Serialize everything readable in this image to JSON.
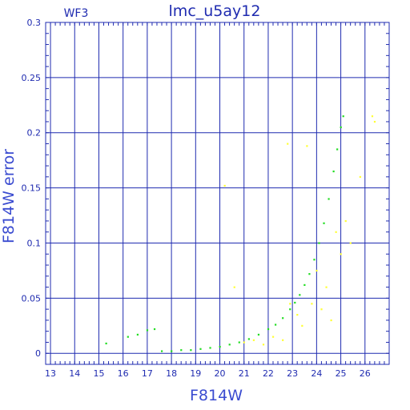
{
  "chart_data": {
    "type": "scatter",
    "title": "lmc_u5ay12",
    "corner_label": "WF3",
    "xlabel": "F814W",
    "ylabel": "F814W error",
    "xlim": [
      12.8,
      27.0
    ],
    "ylim": [
      -0.01,
      0.3
    ],
    "xticks": [
      13,
      14,
      15,
      16,
      17,
      18,
      19,
      20,
      21,
      22,
      23,
      24,
      25,
      26
    ],
    "xtick_labels": [
      "13",
      "14",
      "15",
      "16",
      "17",
      "18",
      "19",
      "20",
      "21",
      "22",
      "23",
      "24",
      "25",
      "26"
    ],
    "yticks": [
      0,
      0.05,
      0.1,
      0.15,
      0.2,
      0.25,
      0.3
    ],
    "ytick_labels": [
      "0",
      "0.05",
      "0.1",
      "0.15",
      "0.2",
      "0.25",
      "0.3"
    ],
    "grid": true,
    "colors": {
      "frame": "#1f2bb0",
      "grid": "#1f2bb0",
      "text": "#1f2bb0",
      "accepted": "#22dd22",
      "rejected": "#ffff33"
    },
    "series": [
      {
        "color": "#22dd22",
        "points": [
          [
            15.3,
            0.009
          ],
          [
            16.2,
            0.015
          ],
          [
            16.6,
            0.017
          ],
          [
            17.0,
            0.021
          ],
          [
            17.3,
            0.022
          ],
          [
            17.6,
            0.002
          ],
          [
            18.0,
            0.002
          ],
          [
            18.4,
            0.003
          ],
          [
            18.8,
            0.003
          ],
          [
            19.2,
            0.004
          ],
          [
            19.6,
            0.005
          ],
          [
            20.0,
            0.006
          ],
          [
            20.4,
            0.008
          ],
          [
            20.8,
            0.01
          ],
          [
            21.2,
            0.013
          ],
          [
            21.6,
            0.017
          ],
          [
            22.0,
            0.022
          ],
          [
            22.3,
            0.026
          ],
          [
            22.6,
            0.032
          ],
          [
            22.9,
            0.04
          ],
          [
            23.1,
            0.046
          ],
          [
            23.3,
            0.053
          ],
          [
            23.5,
            0.062
          ],
          [
            23.7,
            0.072
          ],
          [
            23.9,
            0.085
          ],
          [
            24.1,
            0.1
          ],
          [
            24.3,
            0.118
          ],
          [
            24.5,
            0.14
          ],
          [
            24.7,
            0.165
          ],
          [
            24.85,
            0.185
          ],
          [
            25.0,
            0.205
          ],
          [
            25.1,
            0.215
          ]
        ]
      },
      {
        "color": "#ffff33",
        "points": [
          [
            20.2,
            0.152
          ],
          [
            20.6,
            0.06
          ],
          [
            21.0,
            0.01
          ],
          [
            21.4,
            0.012
          ],
          [
            21.8,
            0.008
          ],
          [
            22.2,
            0.015
          ],
          [
            22.6,
            0.012
          ],
          [
            22.8,
            0.19
          ],
          [
            22.9,
            0.045
          ],
          [
            23.2,
            0.035
          ],
          [
            23.4,
            0.025
          ],
          [
            23.6,
            0.188
          ],
          [
            23.8,
            0.045
          ],
          [
            24.0,
            0.075
          ],
          [
            24.2,
            0.04
          ],
          [
            24.4,
            0.06
          ],
          [
            24.6,
            0.03
          ],
          [
            24.8,
            0.11
          ],
          [
            25.0,
            0.09
          ],
          [
            25.2,
            0.12
          ],
          [
            25.4,
            0.1
          ],
          [
            25.8,
            0.16
          ],
          [
            26.3,
            0.215
          ],
          [
            26.4,
            0.21
          ]
        ]
      }
    ]
  }
}
